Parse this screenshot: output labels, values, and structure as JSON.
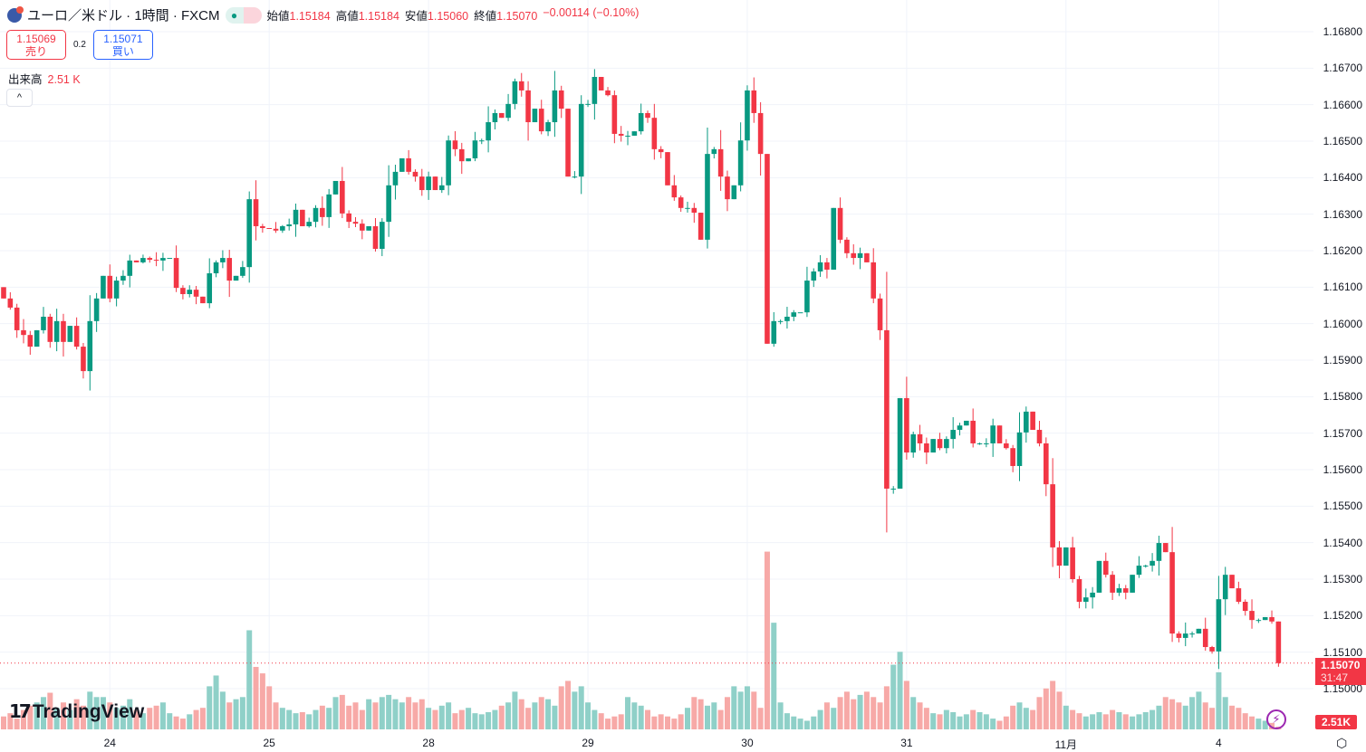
{
  "header": {
    "symbol_title": "ユーロ／米ドル · 1時間 · FXCM",
    "flag_icon": "eur-usd-flag-icon",
    "market_status_icon": "green-dot-icon",
    "approx_icon": "≈",
    "open_label": "始値",
    "open": "1.15184",
    "high_label": "高値",
    "high": "1.15184",
    "low_label": "安値",
    "low": "1.15060",
    "close_label": "終値",
    "close": "1.15070",
    "change": "−0.00114 (−0.10%)"
  },
  "trade": {
    "sell_price": "1.15069",
    "sell_label": "売り",
    "spread": "0.2",
    "buy_price": "1.15071",
    "buy_label": "買い"
  },
  "volume_legend": {
    "label": "出来高",
    "value": "2.51 K"
  },
  "collapse_icon": "^",
  "price_tag": {
    "price": "1.15070",
    "countdown": "31:47"
  },
  "volume_tag": "2.51K",
  "logo_text": "TradingView",
  "colors": {
    "up": "#089981",
    "down": "#f23645",
    "vol_up": "#8fd0c8",
    "vol_down": "#f7a9a7",
    "grid": "#f0f3fa"
  },
  "chart_data": {
    "type": "candlestick",
    "symbol": "EUR/USD",
    "interval": "1h",
    "ylim": [
      1.1497,
      1.1683
    ],
    "grid": true,
    "y_ticks": [
      "1.16800",
      "1.16700",
      "1.16600",
      "1.16500",
      "1.16400",
      "1.16300",
      "1.16200",
      "1.16100",
      "1.16000",
      "1.15900",
      "1.15800",
      "1.15700",
      "1.15600",
      "1.15500",
      "1.15400",
      "1.15300",
      "1.15200",
      "1.15100",
      "1.15000"
    ],
    "x_ticks": [
      {
        "label": "24",
        "index": 16
      },
      {
        "label": "25",
        "index": 40
      },
      {
        "label": "28",
        "index": 64
      },
      {
        "label": "29",
        "index": 88
      },
      {
        "label": "30",
        "index": 112
      },
      {
        "label": "31",
        "index": 136
      },
      {
        "label": "11月",
        "index": 160
      },
      {
        "label": "4",
        "index": 183
      }
    ],
    "first_open": 1.161,
    "close": [
      1.16069,
      1.16044,
      1.15982,
      1.15969,
      1.15937,
      1.15982,
      1.16019,
      1.1595,
      1.16007,
      1.1595,
      1.15994,
      1.15937,
      1.1587,
      1.16007,
      1.16069,
      1.16131,
      1.16069,
      1.16118,
      1.16131,
      1.16173,
      1.16168,
      1.1618,
      1.16175,
      1.16173,
      1.1618,
      1.1618,
      1.16098,
      1.16081,
      1.16093,
      1.16074,
      1.16056,
      1.16138,
      1.16168,
      1.1618,
      1.16118,
      1.16131,
      1.16155,
      1.16341,
      1.16267,
      1.16262,
      1.1626,
      1.16255,
      1.16267,
      1.16272,
      1.16312,
      1.16267,
      1.16279,
      1.16317,
      1.16292,
      1.16354,
      1.16391,
      1.16302,
      1.16279,
      1.16274,
      1.16255,
      1.16267,
      1.16205,
      1.16279,
      1.16379,
      1.16416,
      1.16453,
      1.16416,
      1.16403,
      1.16366,
      1.16403,
      1.16366,
      1.16379,
      1.16502,
      1.16478,
      1.16445,
      1.16453,
      1.16502,
      1.16502,
      1.16552,
      1.16577,
      1.16564,
      1.16602,
      1.16664,
      1.16639,
      1.16552,
      1.16589,
      1.16527,
      1.16552,
      1.16639,
      1.16589,
      1.16403,
      1.16403,
      1.16602,
      1.16602,
      1.16676,
      1.16639,
      1.16626,
      1.1652,
      1.16515,
      1.16515,
      1.16527,
      1.16577,
      1.16564,
      1.16478,
      1.1647,
      1.16379,
      1.16346,
      1.16317,
      1.16317,
      1.16304,
      1.1623,
      1.16465,
      1.16478,
      1.16403,
      1.16341,
      1.16379,
      1.16502,
      1.16639,
      1.16577,
      1.16465,
      1.15945,
      1.16007,
      1.16007,
      1.16019,
      1.16031,
      1.16031,
      1.16118,
      1.16143,
      1.16168,
      1.16148,
      1.16317,
      1.1623,
      1.16193,
      1.1618,
      1.16193,
      1.16168,
      1.16069,
      1.15982,
      1.15548,
      1.15548,
      1.15796,
      1.15647,
      1.15697,
      1.15672,
      1.15647,
      1.15684,
      1.15659,
      1.15684,
      1.15709,
      1.15721,
      1.15734,
      1.15672,
      1.15672,
      1.15672,
      1.15721,
      1.15672,
      1.15659,
      1.1561,
      1.15702,
      1.15759,
      1.15709,
      1.15672,
      1.1556,
      1.15387,
      1.15337,
      1.15387,
      1.153,
      1.15238,
      1.1525,
      1.15263,
      1.1535,
      1.15312,
      1.15263,
      1.15275,
      1.15263,
      1.15312,
      1.15337,
      1.15337,
      1.1535,
      1.15399,
      1.15374,
      1.15151,
      1.15139,
      1.15151,
      1.15151,
      1.15164,
      1.15114,
      1.15102,
      1.15245,
      1.15312,
      1.15275,
      1.15238,
      1.15213,
      1.15188,
      1.15188,
      1.15196,
      1.15184,
      1.1507
    ],
    "last_candle": {
      "open": 1.15184,
      "high": 1.15184,
      "low": 1.1506,
      "close": 1.1507
    },
    "volume_k": [
      12,
      15,
      10,
      18,
      22,
      25,
      30,
      34,
      20,
      25,
      18,
      28,
      22,
      35,
      30,
      30,
      25,
      20,
      22,
      28,
      18,
      15,
      20,
      22,
      25,
      15,
      12,
      10,
      14,
      18,
      20,
      40,
      50,
      35,
      25,
      28,
      30,
      92,
      58,
      52,
      40,
      25,
      20,
      18,
      15,
      16,
      14,
      18,
      22,
      20,
      30,
      32,
      22,
      25,
      18,
      28,
      25,
      30,
      32,
      28,
      25,
      30,
      25,
      28,
      20,
      18,
      22,
      25,
      15,
      18,
      20,
      15,
      14,
      16,
      18,
      22,
      25,
      35,
      28,
      20,
      25,
      30,
      28,
      22,
      40,
      45,
      35,
      40,
      25,
      18,
      15,
      10,
      12,
      14,
      30,
      25,
      22,
      18,
      12,
      14,
      12,
      10,
      14,
      20,
      30,
      28,
      22,
      25,
      18,
      30,
      40,
      35,
      40,
      35,
      20,
      165,
      99,
      25,
      15,
      12,
      10,
      8,
      12,
      18,
      25,
      20,
      30,
      35,
      28,
      32,
      35,
      30,
      25,
      40,
      60,
      72,
      45,
      30,
      25,
      20,
      15,
      14,
      18,
      16,
      12,
      14,
      18,
      16,
      14,
      10,
      8,
      12,
      22,
      25,
      20,
      18,
      30,
      38,
      45,
      35,
      22,
      18,
      15,
      12,
      14,
      16,
      14,
      18,
      16,
      14,
      12,
      14,
      16,
      18,
      22,
      30,
      28,
      25,
      22,
      30,
      35,
      25,
      20,
      53,
      30,
      22,
      20,
      15,
      12,
      10,
      8,
      6,
      2.51
    ]
  }
}
